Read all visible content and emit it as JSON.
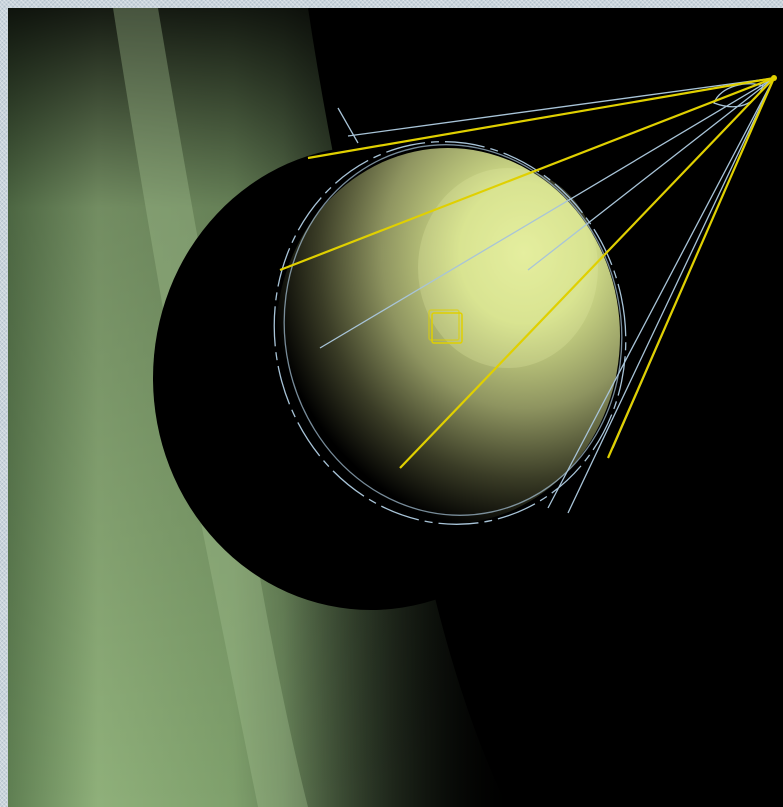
{
  "scene": {
    "view": "3d-viewport",
    "objects": [
      {
        "name": "sphere",
        "type": "shaded-sphere",
        "color": "#d4e08a"
      },
      {
        "name": "backdrop",
        "type": "ground-plane",
        "color": "#8fb07a"
      },
      {
        "name": "spot-light",
        "type": "spotlight-gizmo",
        "color": "#e0d000"
      },
      {
        "name": "light-cone",
        "type": "wireframe-cone",
        "color": "#a8c4d8"
      }
    ],
    "colors": {
      "background": "#000000",
      "light_rays": "#e0d000",
      "wireframe": "#a8c4d8",
      "window_frame": "#c9d4dc"
    }
  }
}
